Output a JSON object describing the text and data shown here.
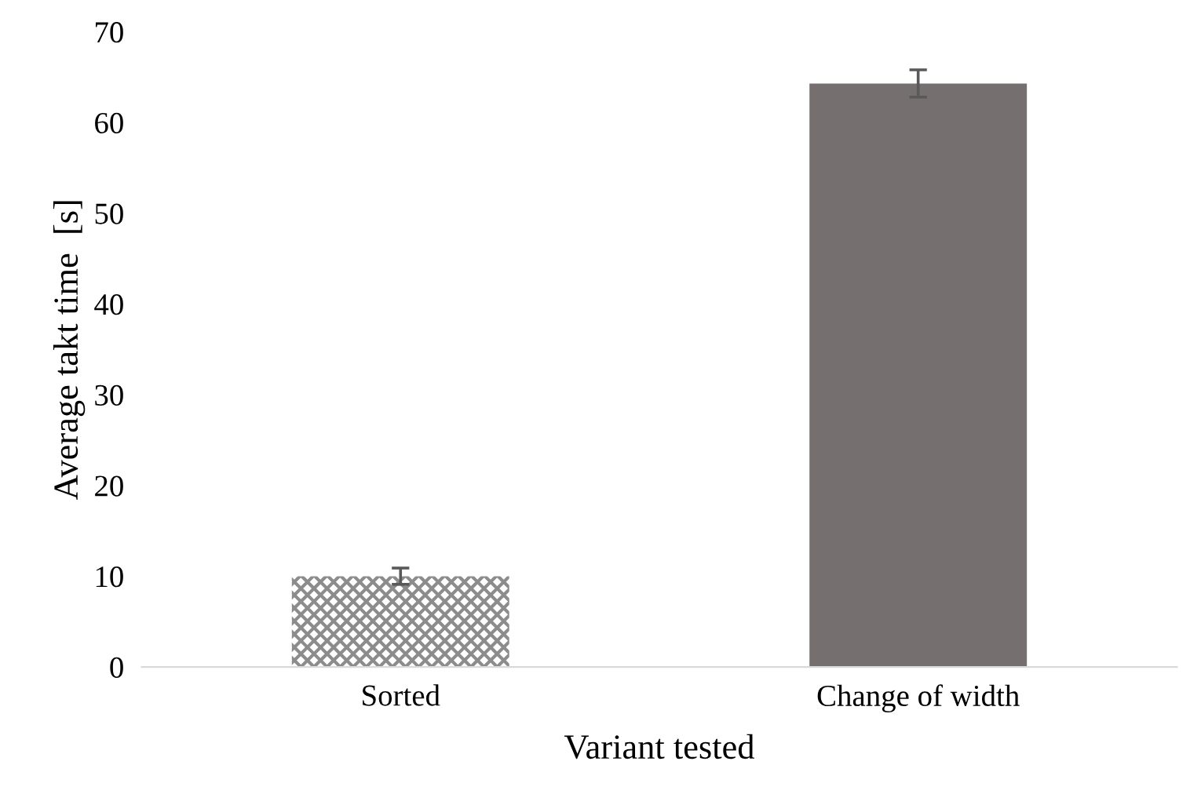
{
  "chart_data": {
    "type": "bar",
    "xlabel": "Variant tested",
    "ylabel": "Average takt time  [s]",
    "categories": [
      "Sorted",
      "Change of width"
    ],
    "values": [
      10,
      64.3
    ],
    "errors": [
      0.9,
      1.5
    ],
    "colors": [
      "#8c8c8c",
      "#75706f"
    ],
    "ylim": [
      0,
      70
    ],
    "yticks": [
      0,
      10,
      20,
      30,
      40,
      50,
      60,
      70
    ],
    "grid": false,
    "legend": false
  }
}
